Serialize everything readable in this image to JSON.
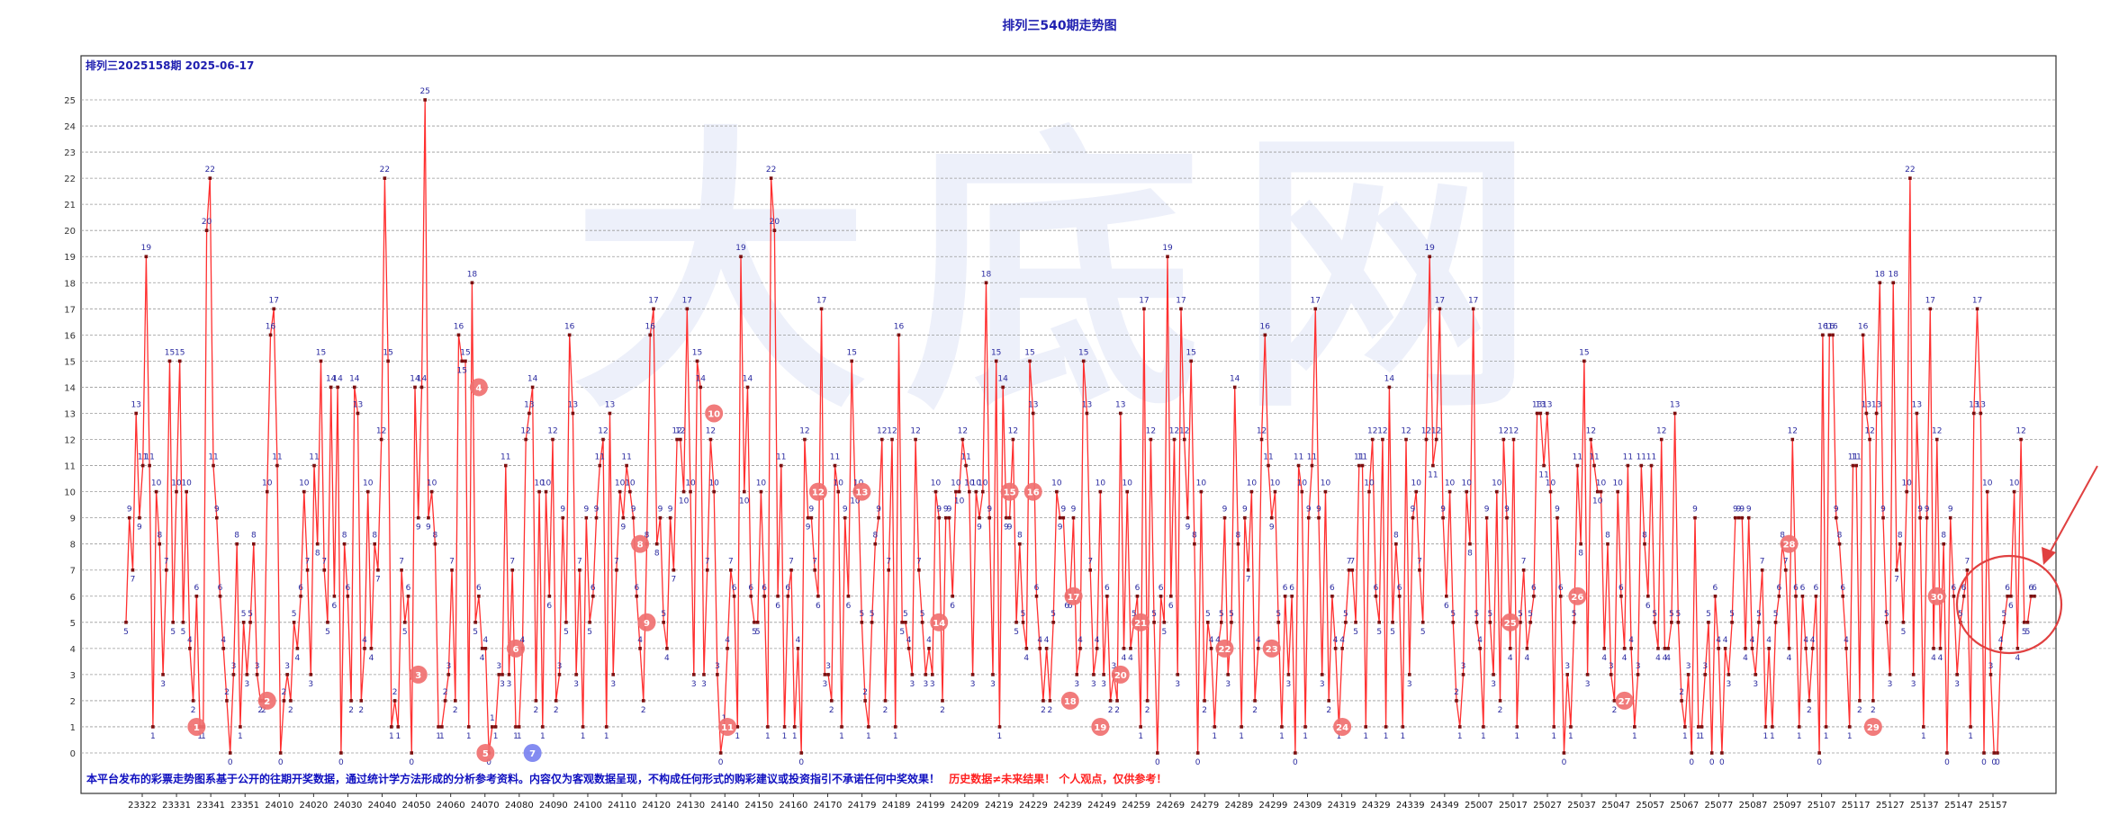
{
  "title": "排列三540期走势图",
  "subtitle": "排列三2025158期  2025-06-17",
  "disclaimer_a": "本平台发布的彩票走势图系基于公开的往期开奖数据，通过统计学方法形成的分析参考资料。内容仅为客观数据呈现，不构成任何形式的购彩建议或投资指引不承诺任何中奖效果！",
  "disclaimer_b": "历史数据≠未来结果！ 个人观点，仅供参考！",
  "watermark": "大底网",
  "colors": {
    "line": "#ff3030",
    "point": "#7a1010",
    "label": "#2a2aa0",
    "grid": "#9a9a9a",
    "title": "#1f1fb0",
    "disclaimer": "#1010c0",
    "warning": "#ff2020",
    "circle_red": "#f07070",
    "circle_blue": "#7a82f0",
    "highlight": "#e04040"
  },
  "chart_data": {
    "type": "line",
    "title": "排列三540期走势图",
    "y_ticks": [
      0,
      1,
      2,
      3,
      4,
      5,
      6,
      7,
      8,
      9,
      10,
      11,
      12,
      13,
      14,
      15,
      16,
      17,
      18,
      19,
      20,
      21,
      22,
      23,
      24,
      25
    ],
    "ylim": [
      0,
      25
    ],
    "grid": true,
    "x_tick_labels": [
      "23322",
      "23331",
      "23341",
      "23351",
      "24010",
      "24020",
      "24030",
      "24040",
      "24050",
      "24060",
      "24070",
      "24080",
      "24090",
      "24100",
      "24110",
      "24120",
      "24130",
      "24140",
      "24150",
      "24160",
      "24170",
      "24179",
      "24189",
      "24199",
      "24209",
      "24219",
      "24229",
      "24239",
      "24249",
      "24259",
      "24269",
      "24279",
      "24289",
      "24299",
      "24309",
      "24319",
      "24329",
      "24339",
      "24349",
      "25007",
      "25017",
      "25027",
      "25037",
      "25047",
      "25057",
      "25067",
      "25077",
      "25087",
      "25097",
      "25107",
      "25117",
      "25127",
      "25137",
      "25147",
      "25157"
    ],
    "n_points": 540,
    "values": [
      5,
      9,
      7,
      13,
      9,
      11,
      19,
      11,
      1,
      10,
      8,
      3,
      7,
      15,
      5,
      10,
      15,
      5,
      10,
      4,
      2,
      6,
      1,
      1,
      20,
      22,
      11,
      9,
      6,
      4,
      2,
      0,
      3,
      8,
      1,
      5,
      3,
      5,
      8,
      3,
      2,
      2,
      10,
      16,
      17,
      11,
      0,
      2,
      3,
      2,
      5,
      4,
      6,
      10,
      7,
      3,
      11,
      8,
      15,
      7,
      5,
      14,
      6,
      14,
      0,
      8,
      6,
      2,
      14,
      13,
      2,
      4,
      10,
      4,
      8,
      7,
      12,
      22,
      15,
      1,
      2,
      1,
      7,
      5,
      6,
      0,
      14,
      9,
      14,
      25,
      9,
      10,
      8,
      1,
      1,
      2,
      3,
      7,
      2,
      16,
      15,
      15,
      1,
      18,
      5,
      6,
      4,
      4,
      0,
      1,
      1,
      3,
      3,
      11,
      3,
      7,
      1,
      1,
      4,
      12,
      13,
      14,
      2,
      10,
      1,
      10,
      6,
      12,
      2,
      3,
      9,
      5,
      16,
      13,
      3,
      7,
      1,
      9,
      5,
      6,
      9,
      11,
      12,
      1,
      13,
      3,
      7,
      10,
      9,
      11,
      10,
      9,
      6,
      4,
      2,
      8,
      16,
      17,
      8,
      9,
      5,
      4,
      9,
      7,
      12,
      12,
      10,
      17,
      10,
      3,
      15,
      14,
      3,
      7,
      12,
      10,
      3,
      0,
      1,
      4,
      7,
      6,
      1,
      19,
      10,
      14,
      6,
      5,
      5,
      10,
      6,
      1,
      22,
      20,
      6,
      11,
      1,
      6,
      7,
      1,
      4,
      0,
      12,
      9,
      9,
      7,
      6,
      17,
      3,
      3,
      2,
      11,
      10,
      1,
      9,
      6,
      15,
      10,
      10,
      5,
      2,
      1,
      5,
      8,
      9,
      12,
      2,
      7,
      12,
      1,
      16,
      5,
      5,
      4,
      3,
      12,
      7,
      5,
      3,
      4,
      3,
      10,
      9,
      2,
      9,
      9,
      6,
      10,
      10,
      12,
      11,
      10,
      3,
      10,
      9,
      10,
      18,
      9,
      3,
      15,
      1,
      14,
      9,
      9,
      12,
      5,
      8,
      5,
      4,
      15,
      13,
      6,
      4,
      2,
      4,
      2,
      5,
      10,
      9,
      9,
      6,
      6,
      9,
      3,
      4,
      15,
      13,
      7,
      3,
      4,
      10,
      3,
      6,
      2,
      3,
      2,
      13,
      4,
      10,
      4,
      5,
      6,
      1,
      17,
      2,
      12,
      5,
      0,
      6,
      5,
      19,
      6,
      12,
      3,
      17,
      12,
      9,
      15,
      8,
      0,
      10,
      2,
      5,
      4,
      1,
      4,
      5,
      9,
      3,
      5,
      14,
      8,
      1,
      9,
      7,
      10,
      2,
      4,
      12,
      16,
      11,
      9,
      10,
      5,
      1,
      6,
      3,
      6,
      0,
      11,
      10,
      1,
      9,
      11,
      17,
      9,
      3,
      10,
      2,
      6,
      4,
      1,
      4,
      5,
      7,
      7,
      5,
      11,
      11,
      1,
      10,
      12,
      6,
      5,
      12,
      1,
      14,
      5,
      8,
      6,
      1,
      12,
      3,
      9,
      10,
      7,
      5,
      12,
      19,
      11,
      12,
      17,
      9,
      6,
      10,
      5,
      2,
      1,
      3,
      10,
      8,
      17,
      5,
      4,
      1,
      9,
      5,
      3,
      10,
      2,
      12,
      9,
      4,
      12,
      1,
      5,
      7,
      4,
      5,
      6,
      13,
      13,
      11,
      13,
      10,
      1,
      9,
      6,
      0,
      3,
      1,
      5,
      11,
      8,
      15,
      3,
      12,
      11,
      10,
      10,
      4,
      8,
      3,
      2,
      10,
      6,
      4,
      11,
      4,
      1,
      3,
      11,
      8,
      6,
      11,
      5,
      4,
      12,
      4,
      4,
      5,
      13,
      5,
      2,
      1,
      3,
      0,
      9,
      1,
      1,
      3,
      5,
      0,
      6,
      4,
      0,
      4,
      3,
      5,
      9,
      9,
      9,
      4,
      9,
      4,
      3,
      5,
      7,
      1,
      4,
      1,
      5,
      6,
      8,
      7,
      4,
      12,
      6,
      1,
      6,
      4,
      2,
      4,
      6,
      0,
      16,
      1,
      16,
      16,
      9,
      8,
      6,
      4,
      1,
      11,
      11,
      2,
      16,
      13,
      12,
      2,
      13,
      18,
      9,
      5,
      3,
      18,
      7,
      8,
      5,
      10,
      22,
      3,
      13,
      9,
      1,
      9,
      17,
      4,
      12,
      4,
      8,
      0,
      9,
      6,
      3,
      5,
      6,
      7,
      1,
      13,
      17,
      13,
      0,
      10,
      3,
      0,
      0,
      4,
      5,
      6,
      6,
      10,
      4,
      12,
      5,
      5,
      6,
      6
    ]
  },
  "markers": [
    {
      "label": "1",
      "point": 22,
      "value": 1,
      "kind": "red"
    },
    {
      "label": "2",
      "point": 43,
      "value": 2,
      "kind": "red"
    },
    {
      "label": "3",
      "point": 88,
      "value": 3,
      "kind": "red"
    },
    {
      "label": "4",
      "point": 106,
      "value": 14,
      "kind": "red"
    },
    {
      "label": "5",
      "point": 108,
      "value": 0,
      "kind": "red"
    },
    {
      "label": "6",
      "point": 117,
      "value": 4,
      "kind": "red"
    },
    {
      "label": "7",
      "point": 122,
      "value": 0,
      "kind": "blue"
    },
    {
      "label": "8",
      "point": 154,
      "value": 8,
      "kind": "red"
    },
    {
      "label": "9",
      "point": 156,
      "value": 5,
      "kind": "red"
    },
    {
      "label": "10",
      "point": 176,
      "value": 13,
      "kind": "red"
    },
    {
      "label": "11",
      "point": 180,
      "value": 1,
      "kind": "red"
    },
    {
      "label": "12",
      "point": 207,
      "value": 10,
      "kind": "red"
    },
    {
      "label": "13",
      "point": 220,
      "value": 10,
      "kind": "red"
    },
    {
      "label": "14",
      "point": 243,
      "value": 5,
      "kind": "red"
    },
    {
      "label": "15",
      "point": 264,
      "value": 10,
      "kind": "red"
    },
    {
      "label": "16",
      "point": 271,
      "value": 10,
      "kind": "red"
    },
    {
      "label": "17",
      "point": 283,
      "value": 6,
      "kind": "red"
    },
    {
      "label": "18",
      "point": 282,
      "value": 2,
      "kind": "red"
    },
    {
      "label": "19",
      "point": 291,
      "value": 1,
      "kind": "red"
    },
    {
      "label": "20",
      "point": 297,
      "value": 3,
      "kind": "red"
    },
    {
      "label": "21",
      "point": 303,
      "value": 5,
      "kind": "red"
    },
    {
      "label": "22",
      "point": 328,
      "value": 4,
      "kind": "red"
    },
    {
      "label": "23",
      "point": 342,
      "value": 4,
      "kind": "red"
    },
    {
      "label": "24",
      "point": 363,
      "value": 1,
      "kind": "red"
    },
    {
      "label": "25",
      "point": 413,
      "value": 5,
      "kind": "red"
    },
    {
      "label": "26",
      "point": 433,
      "value": 6,
      "kind": "red"
    },
    {
      "label": "27",
      "point": 447,
      "value": 2,
      "kind": "red"
    },
    {
      "label": "28",
      "point": 496,
      "value": 8,
      "kind": "red"
    },
    {
      "label": "29",
      "point": 521,
      "value": 1,
      "kind": "red"
    },
    {
      "label": "30",
      "point": 540,
      "value": 6,
      "kind": "red"
    }
  ]
}
